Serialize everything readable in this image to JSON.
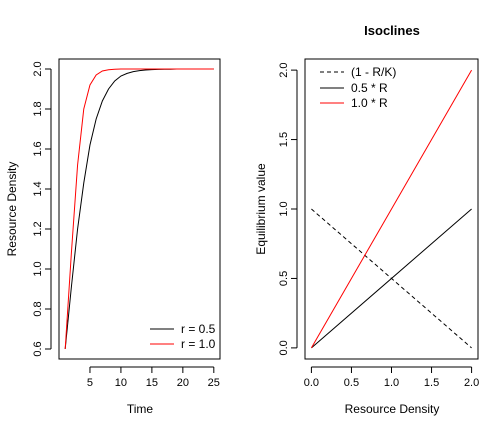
{
  "chart_data": [
    {
      "type": "line",
      "title": "",
      "xlabel": "Time",
      "ylabel": "Resource Density",
      "xlim": [
        0,
        26
      ],
      "ylim": [
        0.55,
        2.05
      ],
      "xticks": [
        "5",
        "10",
        "15",
        "20",
        "25"
      ],
      "xtick_values": [
        5,
        10,
        15,
        20,
        25
      ],
      "yticks": [
        "0.6",
        "0.8",
        "1.0",
        "1.2",
        "1.4",
        "1.6",
        "1.8",
        "2.0"
      ],
      "ytick_values": [
        0.6,
        0.8,
        1.0,
        1.2,
        1.4,
        1.6,
        1.8,
        2.0
      ],
      "grid": false,
      "legend": {
        "placement": "bottom-right"
      },
      "x": [
        1,
        2,
        3,
        4,
        5,
        6,
        7,
        8,
        9,
        10,
        11,
        12,
        13,
        14,
        15,
        16,
        17,
        18,
        19,
        20,
        21,
        22,
        23,
        24,
        25
      ],
      "series": [
        {
          "name": "r = 0.5",
          "color": "#000000",
          "values": [
            0.6,
            0.91,
            1.2,
            1.43,
            1.62,
            1.75,
            1.84,
            1.9,
            1.94,
            1.965,
            1.978,
            1.987,
            1.992,
            1.995,
            1.997,
            1.998,
            1.999,
            1.999,
            2.0,
            2.0,
            2.0,
            2.0,
            2.0,
            2.0,
            2.0
          ]
        },
        {
          "name": "r = 1.0",
          "color": "#ff0000",
          "values": [
            0.6,
            1.08,
            1.52,
            1.8,
            1.92,
            1.97,
            1.99,
            1.996,
            1.999,
            2.0,
            2.0,
            2.0,
            2.0,
            2.0,
            2.0,
            2.0,
            2.0,
            2.0,
            2.0,
            2.0,
            2.0,
            2.0,
            2.0,
            2.0,
            2.0
          ]
        }
      ]
    },
    {
      "type": "line",
      "title": "Isoclines",
      "xlabel": "Resource Density",
      "ylabel": "Equilibrium value",
      "xlim": [
        -0.08,
        2.08
      ],
      "ylim": [
        -0.08,
        2.08
      ],
      "xticks": [
        "0.0",
        "0.5",
        "1.0",
        "1.5",
        "2.0"
      ],
      "xtick_values": [
        0,
        0.5,
        1,
        1.5,
        2
      ],
      "yticks": [
        "0.0",
        "0.5",
        "1.0",
        "1.5",
        "2.0"
      ],
      "ytick_values": [
        0,
        0.5,
        1,
        1.5,
        2
      ],
      "grid": false,
      "legend": {
        "placement": "top-left"
      },
      "x": [
        0,
        2
      ],
      "series": [
        {
          "name": "(1 - R/K)",
          "color": "#000000",
          "dashed": true,
          "values": [
            1,
            0
          ]
        },
        {
          "name": "0.5 * R",
          "color": "#000000",
          "dashed": false,
          "values": [
            0,
            1
          ]
        },
        {
          "name": "1.0 * R",
          "color": "#ff0000",
          "dashed": false,
          "values": [
            0,
            2
          ]
        }
      ]
    }
  ]
}
